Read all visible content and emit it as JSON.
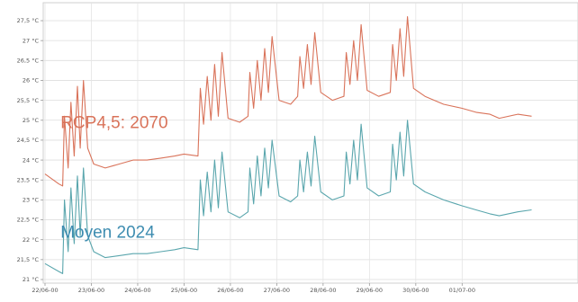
{
  "chart_data": {
    "type": "line",
    "grid": true,
    "ylim": [
      21,
      27.5
    ],
    "xlim": [
      0,
      11.5
    ],
    "y_ticks": [
      {
        "value": 21,
        "label": "21 °C"
      },
      {
        "value": 21.5,
        "label": "21,5 °C"
      },
      {
        "value": 22,
        "label": "22 °C"
      },
      {
        "value": 22.5,
        "label": "22,5 °C"
      },
      {
        "value": 23,
        "label": "23 °C"
      },
      {
        "value": 23.5,
        "label": "23,5 °C"
      },
      {
        "value": 24,
        "label": "24 °C"
      },
      {
        "value": 24.5,
        "label": "24,5 °C"
      },
      {
        "value": 25,
        "label": "25 °C"
      },
      {
        "value": 25.5,
        "label": "25,5 °C"
      },
      {
        "value": 26,
        "label": "26 °C"
      },
      {
        "value": 26.5,
        "label": "26,5 °C"
      },
      {
        "value": 27,
        "label": "27 °C"
      },
      {
        "value": 27.5,
        "label": "27,5 °C"
      }
    ],
    "x_ticks": [
      {
        "value": 0,
        "label": "22/06-00"
      },
      {
        "value": 1,
        "label": "23/06-00"
      },
      {
        "value": 2,
        "label": "24/06-00"
      },
      {
        "value": 3,
        "label": "25/06-00"
      },
      {
        "value": 4,
        "label": "26/06-00"
      },
      {
        "value": 5,
        "label": "27/06-00"
      },
      {
        "value": 6,
        "label": "28/06-00"
      },
      {
        "value": 7,
        "label": "29/06-00"
      },
      {
        "value": 8,
        "label": "30/06-00"
      },
      {
        "value": 9,
        "label": "01/07-00"
      }
    ],
    "series": [
      {
        "name": "RCP4,5: 2070",
        "color": "#d9735a",
        "points": [
          [
            0,
            23.65
          ],
          [
            0.3,
            23.4
          ],
          [
            0.38,
            23.35
          ],
          [
            0.42,
            25.1
          ],
          [
            0.5,
            23.8
          ],
          [
            0.56,
            25.45
          ],
          [
            0.63,
            24.1
          ],
          [
            0.7,
            25.85
          ],
          [
            0.76,
            24.3
          ],
          [
            0.83,
            26.0
          ],
          [
            0.92,
            24.3
          ],
          [
            1.05,
            23.9
          ],
          [
            1.3,
            23.8
          ],
          [
            1.6,
            23.9
          ],
          [
            1.9,
            24.0
          ],
          [
            2.2,
            24.0
          ],
          [
            2.5,
            24.05
          ],
          [
            2.8,
            24.1
          ],
          [
            3.0,
            24.15
          ],
          [
            3.3,
            24.1
          ],
          [
            3.35,
            25.8
          ],
          [
            3.42,
            24.9
          ],
          [
            3.5,
            26.1
          ],
          [
            3.58,
            25.0
          ],
          [
            3.66,
            26.4
          ],
          [
            3.74,
            25.1
          ],
          [
            3.82,
            26.7
          ],
          [
            3.95,
            25.05
          ],
          [
            4.2,
            24.95
          ],
          [
            4.38,
            25.1
          ],
          [
            4.42,
            26.2
          ],
          [
            4.5,
            25.3
          ],
          [
            4.58,
            26.5
          ],
          [
            4.66,
            25.5
          ],
          [
            4.74,
            26.8
          ],
          [
            4.82,
            25.7
          ],
          [
            4.9,
            27.1
          ],
          [
            5.05,
            25.5
          ],
          [
            5.3,
            25.4
          ],
          [
            5.45,
            25.6
          ],
          [
            5.5,
            26.6
          ],
          [
            5.58,
            25.8
          ],
          [
            5.66,
            26.9
          ],
          [
            5.74,
            25.9
          ],
          [
            5.82,
            27.2
          ],
          [
            5.95,
            25.7
          ],
          [
            6.2,
            25.5
          ],
          [
            6.45,
            25.6
          ],
          [
            6.5,
            26.7
          ],
          [
            6.58,
            25.9
          ],
          [
            6.66,
            27.0
          ],
          [
            6.74,
            26.0
          ],
          [
            6.82,
            27.4
          ],
          [
            6.95,
            25.75
          ],
          [
            7.2,
            25.6
          ],
          [
            7.45,
            25.7
          ],
          [
            7.5,
            26.9
          ],
          [
            7.58,
            26.0
          ],
          [
            7.66,
            27.3
          ],
          [
            7.74,
            26.1
          ],
          [
            7.82,
            27.6
          ],
          [
            7.95,
            25.8
          ],
          [
            8.2,
            25.6
          ],
          [
            8.6,
            25.4
          ],
          [
            9.0,
            25.3
          ],
          [
            9.3,
            25.2
          ],
          [
            9.6,
            25.15
          ],
          [
            9.8,
            25.05
          ],
          [
            10.2,
            25.15
          ],
          [
            10.5,
            25.1
          ]
        ]
      },
      {
        "name": "Moyen 2024",
        "color": "#5aa6ad",
        "points": [
          [
            0,
            21.4
          ],
          [
            0.3,
            21.2
          ],
          [
            0.38,
            21.15
          ],
          [
            0.42,
            23.0
          ],
          [
            0.5,
            21.7
          ],
          [
            0.56,
            23.3
          ],
          [
            0.63,
            21.9
          ],
          [
            0.7,
            23.6
          ],
          [
            0.76,
            22.1
          ],
          [
            0.83,
            23.8
          ],
          [
            0.92,
            22.1
          ],
          [
            1.05,
            21.7
          ],
          [
            1.3,
            21.55
          ],
          [
            1.6,
            21.6
          ],
          [
            1.9,
            21.65
          ],
          [
            2.2,
            21.65
          ],
          [
            2.5,
            21.7
          ],
          [
            2.8,
            21.75
          ],
          [
            3.0,
            21.8
          ],
          [
            3.3,
            21.75
          ],
          [
            3.35,
            23.5
          ],
          [
            3.42,
            22.6
          ],
          [
            3.5,
            23.7
          ],
          [
            3.58,
            22.7
          ],
          [
            3.66,
            24.0
          ],
          [
            3.74,
            22.8
          ],
          [
            3.82,
            24.2
          ],
          [
            3.95,
            22.7
          ],
          [
            4.2,
            22.55
          ],
          [
            4.38,
            22.7
          ],
          [
            4.42,
            23.8
          ],
          [
            4.5,
            22.9
          ],
          [
            4.58,
            24.1
          ],
          [
            4.66,
            23.1
          ],
          [
            4.74,
            24.3
          ],
          [
            4.82,
            23.3
          ],
          [
            4.9,
            24.5
          ],
          [
            5.05,
            23.1
          ],
          [
            5.3,
            22.95
          ],
          [
            5.45,
            23.1
          ],
          [
            5.5,
            24.0
          ],
          [
            5.58,
            23.2
          ],
          [
            5.66,
            24.2
          ],
          [
            5.74,
            23.35
          ],
          [
            5.82,
            24.6
          ],
          [
            5.95,
            23.2
          ],
          [
            6.2,
            23.0
          ],
          [
            6.45,
            23.1
          ],
          [
            6.5,
            24.2
          ],
          [
            6.58,
            23.4
          ],
          [
            6.66,
            24.5
          ],
          [
            6.74,
            23.5
          ],
          [
            6.82,
            24.9
          ],
          [
            6.95,
            23.3
          ],
          [
            7.2,
            23.1
          ],
          [
            7.45,
            23.2
          ],
          [
            7.5,
            24.4
          ],
          [
            7.58,
            23.5
          ],
          [
            7.66,
            24.7
          ],
          [
            7.74,
            23.6
          ],
          [
            7.82,
            25.0
          ],
          [
            7.95,
            23.4
          ],
          [
            8.2,
            23.2
          ],
          [
            8.6,
            23.0
          ],
          [
            9.0,
            22.85
          ],
          [
            9.3,
            22.75
          ],
          [
            9.6,
            22.65
          ],
          [
            9.8,
            22.6
          ],
          [
            10.2,
            22.7
          ],
          [
            10.5,
            22.75
          ]
        ]
      }
    ],
    "annotations": [
      {
        "text": "RCP4,5: 2070",
        "x": 1.5,
        "y": 24.8,
        "color": "#d9735a"
      },
      {
        "text": "Moyen 2024",
        "x": 1.5,
        "y": 22.05,
        "color": "#3d8cb0"
      }
    ]
  }
}
